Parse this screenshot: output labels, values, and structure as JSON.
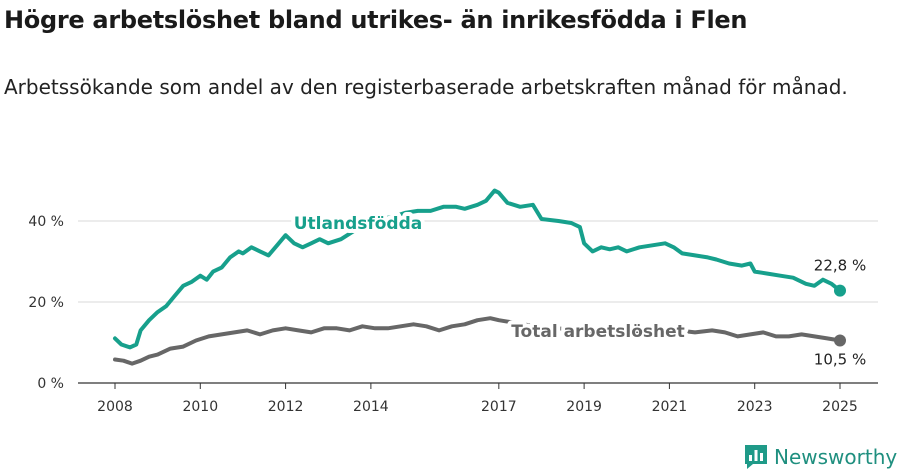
{
  "title": "Högre arbetslöshet bland utrikes- än inrikesfödda i Flen",
  "subtitle": "Arbetssökande som andel av den registerbaserade arbetskraften månad för månad.",
  "brand": {
    "name": "Newsworthy",
    "icon": "bar-chart-logo-icon",
    "color": "#1f9a88"
  },
  "chart_data": {
    "type": "line",
    "title": "Högre arbetslöshet bland utrikes- än inrikesfödda i Flen",
    "subtitle": "Arbetssökande som andel av den registerbaserade arbetskraften månad för månad.",
    "xlabel": "",
    "ylabel": "",
    "xlim": [
      2007.6,
      2025.5
    ],
    "ylim": [
      0,
      50
    ],
    "grid": true,
    "x_ticks": [
      {
        "value": 2008,
        "label": "2008"
      },
      {
        "value": 2010,
        "label": "2010"
      },
      {
        "value": 2012,
        "label": "2012"
      },
      {
        "value": 2014,
        "label": "2014"
      },
      {
        "value": 2017,
        "label": "2017"
      },
      {
        "value": 2019,
        "label": "2019"
      },
      {
        "value": 2021,
        "label": "2021"
      },
      {
        "value": 2023,
        "label": "2023"
      },
      {
        "value": 2025,
        "label": "2025"
      }
    ],
    "y_ticks": [
      {
        "value": 0,
        "label": "0 %"
      },
      {
        "value": 20,
        "label": "20 %"
      },
      {
        "value": 40,
        "label": "40 %"
      }
    ],
    "series": [
      {
        "name": "Utlandsfödda",
        "color": "#17a08c",
        "end_label": "22,8 %",
        "points": [
          [
            2008.0,
            11.0
          ],
          [
            2008.15,
            9.5
          ],
          [
            2008.35,
            8.8
          ],
          [
            2008.5,
            9.5
          ],
          [
            2008.6,
            13.0
          ],
          [
            2008.8,
            15.5
          ],
          [
            2009.0,
            17.5
          ],
          [
            2009.2,
            19.0
          ],
          [
            2009.4,
            21.5
          ],
          [
            2009.6,
            24.0
          ],
          [
            2009.8,
            25.0
          ],
          [
            2010.0,
            26.5
          ],
          [
            2010.15,
            25.5
          ],
          [
            2010.3,
            27.5
          ],
          [
            2010.5,
            28.5
          ],
          [
            2010.7,
            31.0
          ],
          [
            2010.9,
            32.5
          ],
          [
            2011.0,
            32.0
          ],
          [
            2011.2,
            33.5
          ],
          [
            2011.4,
            32.5
          ],
          [
            2011.6,
            31.5
          ],
          [
            2011.8,
            34.0
          ],
          [
            2012.0,
            36.5
          ],
          [
            2012.2,
            34.5
          ],
          [
            2012.4,
            33.5
          ],
          [
            2012.6,
            34.5
          ],
          [
            2012.8,
            35.5
          ],
          [
            2013.0,
            34.5
          ],
          [
            2013.3,
            35.5
          ],
          [
            2013.6,
            37.5
          ],
          [
            2013.9,
            39.0
          ],
          [
            2014.2,
            40.5
          ],
          [
            2014.5,
            41.0
          ],
          [
            2014.8,
            42.0
          ],
          [
            2015.1,
            42.5
          ],
          [
            2015.4,
            42.5
          ],
          [
            2015.7,
            43.5
          ],
          [
            2016.0,
            43.5
          ],
          [
            2016.2,
            43.0
          ],
          [
            2016.5,
            44.0
          ],
          [
            2016.7,
            45.0
          ],
          [
            2016.9,
            47.5
          ],
          [
            2017.0,
            47.0
          ],
          [
            2017.2,
            44.5
          ],
          [
            2017.5,
            43.5
          ],
          [
            2017.8,
            44.0
          ],
          [
            2018.0,
            40.5
          ],
          [
            2018.4,
            40.0
          ],
          [
            2018.7,
            39.5
          ],
          [
            2018.9,
            38.5
          ],
          [
            2019.0,
            34.5
          ],
          [
            2019.2,
            32.5
          ],
          [
            2019.4,
            33.5
          ],
          [
            2019.6,
            33.0
          ],
          [
            2019.8,
            33.5
          ],
          [
            2020.0,
            32.5
          ],
          [
            2020.3,
            33.5
          ],
          [
            2020.6,
            34.0
          ],
          [
            2020.9,
            34.5
          ],
          [
            2021.1,
            33.5
          ],
          [
            2021.3,
            32.0
          ],
          [
            2021.6,
            31.5
          ],
          [
            2021.9,
            31.0
          ],
          [
            2022.1,
            30.5
          ],
          [
            2022.4,
            29.5
          ],
          [
            2022.7,
            29.0
          ],
          [
            2022.9,
            29.5
          ],
          [
            2023.0,
            27.5
          ],
          [
            2023.3,
            27.0
          ],
          [
            2023.6,
            26.5
          ],
          [
            2023.9,
            26.0
          ],
          [
            2024.2,
            24.5
          ],
          [
            2024.4,
            24.0
          ],
          [
            2024.6,
            25.5
          ],
          [
            2024.8,
            24.5
          ],
          [
            2025.0,
            22.8
          ]
        ]
      },
      {
        "name": "Total arbetslöshet",
        "color": "#676767",
        "end_label": "10,5 %",
        "points": [
          [
            2008.0,
            5.8
          ],
          [
            2008.2,
            5.5
          ],
          [
            2008.4,
            4.8
          ],
          [
            2008.6,
            5.5
          ],
          [
            2008.8,
            6.5
          ],
          [
            2009.0,
            7.0
          ],
          [
            2009.3,
            8.5
          ],
          [
            2009.6,
            9.0
          ],
          [
            2009.9,
            10.5
          ],
          [
            2010.2,
            11.5
          ],
          [
            2010.5,
            12.0
          ],
          [
            2010.8,
            12.5
          ],
          [
            2011.1,
            13.0
          ],
          [
            2011.4,
            12.0
          ],
          [
            2011.7,
            13.0
          ],
          [
            2012.0,
            13.5
          ],
          [
            2012.3,
            13.0
          ],
          [
            2012.6,
            12.5
          ],
          [
            2012.9,
            13.5
          ],
          [
            2013.2,
            13.5
          ],
          [
            2013.5,
            13.0
          ],
          [
            2013.8,
            14.0
          ],
          [
            2014.1,
            13.5
          ],
          [
            2014.4,
            13.5
          ],
          [
            2014.7,
            14.0
          ],
          [
            2015.0,
            14.5
          ],
          [
            2015.3,
            14.0
          ],
          [
            2015.6,
            13.0
          ],
          [
            2015.9,
            14.0
          ],
          [
            2016.2,
            14.5
          ],
          [
            2016.5,
            15.5
          ],
          [
            2016.8,
            16.0
          ],
          [
            2017.0,
            15.5
          ],
          [
            2017.3,
            15.0
          ],
          [
            2017.6,
            14.5
          ],
          [
            2018.0,
            13.5
          ],
          [
            2018.4,
            13.5
          ],
          [
            2018.8,
            13.0
          ],
          [
            2019.0,
            12.0
          ],
          [
            2019.3,
            12.5
          ],
          [
            2019.6,
            12.0
          ],
          [
            2020.0,
            12.5
          ],
          [
            2020.4,
            13.0
          ],
          [
            2020.8,
            13.0
          ],
          [
            2021.2,
            13.0
          ],
          [
            2021.6,
            12.5
          ],
          [
            2022.0,
            13.0
          ],
          [
            2022.3,
            12.5
          ],
          [
            2022.6,
            11.5
          ],
          [
            2022.9,
            12.0
          ],
          [
            2023.2,
            12.5
          ],
          [
            2023.5,
            11.5
          ],
          [
            2023.8,
            11.5
          ],
          [
            2024.1,
            12.0
          ],
          [
            2024.4,
            11.5
          ],
          [
            2024.7,
            11.0
          ],
          [
            2025.0,
            10.5
          ]
        ]
      }
    ]
  }
}
